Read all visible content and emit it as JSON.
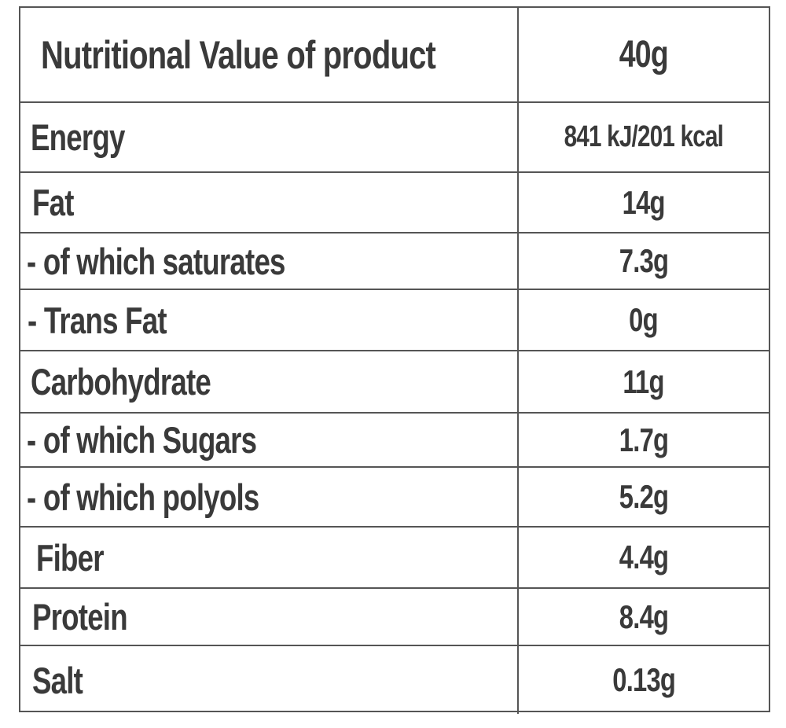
{
  "table": {
    "header": {
      "label": "Nutritional Value of product",
      "value": "40g"
    },
    "rows": [
      {
        "label": "Energy",
        "value": "841 kJ/201 kcal"
      },
      {
        "label": "Fat",
        "value": "14g"
      },
      {
        "label": "- of which saturates",
        "value": "7.3g"
      },
      {
        "label": "- Trans Fat",
        "value": "0g"
      },
      {
        "label": "Carbohydrate",
        "value": "11g"
      },
      {
        "label": "- of which Sugars",
        "value": "1.7g"
      },
      {
        "label": "- of which polyols",
        "value": "5.2g"
      },
      {
        "label": "Fiber",
        "value": "4.4g"
      },
      {
        "label": "Protein",
        "value": "8.4g"
      },
      {
        "label": "Salt",
        "value": "0.13g"
      }
    ]
  },
  "colors": {
    "text": "#3a3a3a",
    "border": "#555555",
    "background": "#ffffff"
  }
}
